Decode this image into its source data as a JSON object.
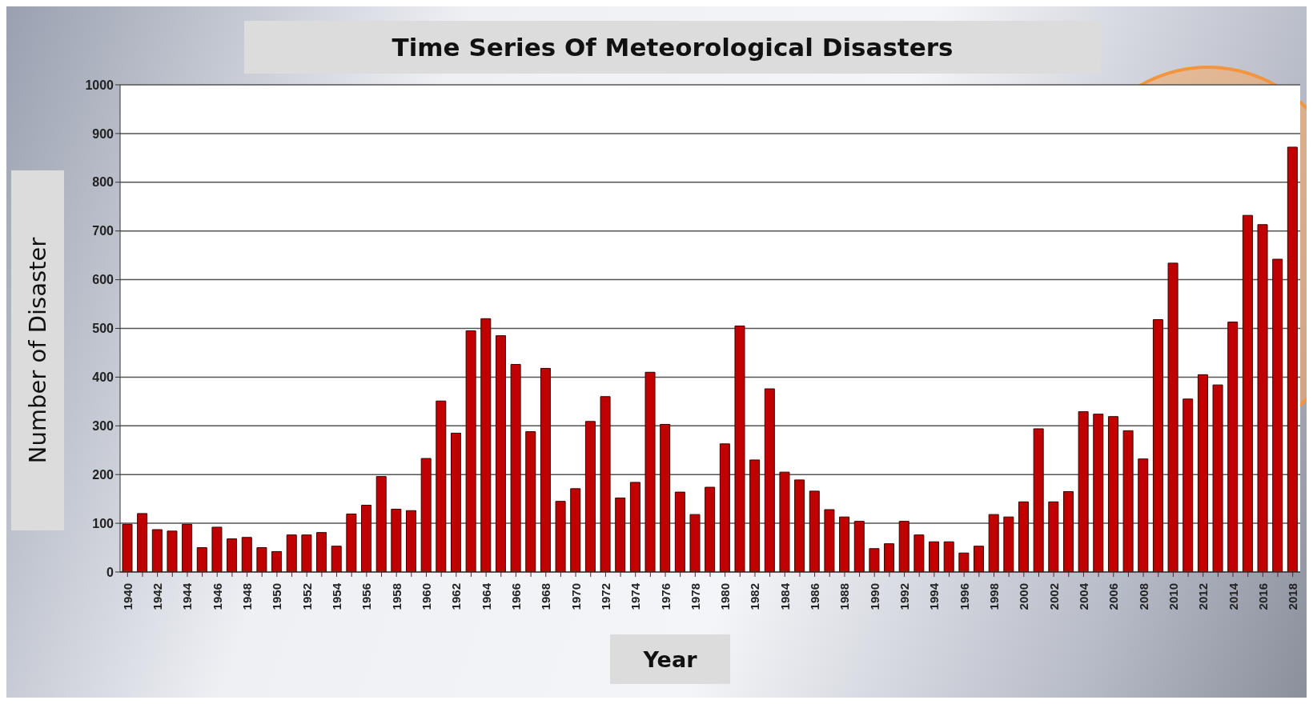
{
  "chart_data": {
    "type": "bar",
    "title": "Time Series Of Meteorological Disasters",
    "xlabel": "Year",
    "ylabel": "Number of Disaster",
    "categories": [
      "1940",
      null,
      "1942",
      null,
      "1944",
      null,
      "1946",
      null,
      "1948",
      null,
      "1950",
      null,
      "1952",
      null,
      "1954",
      null,
      "1956",
      null,
      "1958",
      null,
      "1960",
      null,
      "1962",
      null,
      "1964",
      null,
      "1966",
      null,
      "1968",
      null,
      "1970",
      null,
      "1972",
      null,
      "1974",
      null,
      "1976",
      null,
      "1978",
      null,
      "1980",
      null,
      "1982",
      null,
      "1984",
      null,
      "1986",
      null,
      "1988",
      null,
      "1990",
      null,
      "1992",
      null,
      "1994",
      null,
      "1996",
      null,
      "1998",
      null,
      "2000",
      null,
      "2002",
      null,
      "2004",
      null,
      "2006",
      null,
      "2008",
      null,
      "2010",
      null,
      "2012",
      null,
      "2014",
      null,
      "2016",
      null,
      "2018"
    ],
    "values": [
      98,
      120,
      87,
      84,
      98,
      50,
      92,
      68,
      71,
      50,
      42,
      76,
      76,
      81,
      53,
      119,
      137,
      196,
      129,
      126,
      233,
      351,
      285,
      495,
      520,
      485,
      426,
      288,
      418,
      145,
      171,
      309,
      360,
      152,
      184,
      410,
      303,
      164,
      118,
      174,
      263,
      505,
      230,
      376,
      205,
      189,
      166,
      128,
      113,
      104,
      48,
      58,
      104,
      76,
      62,
      62,
      39,
      53,
      118,
      113,
      144,
      294,
      144,
      165,
      329,
      324,
      319,
      290,
      232,
      518,
      634,
      355,
      405,
      384,
      513,
      732,
      713,
      642,
      872
    ],
    "color": "#c00000",
    "ylim": [
      0,
      1000
    ],
    "yticks": [
      0,
      100,
      200,
      300,
      400,
      500,
      600,
      700,
      800,
      900,
      1000
    ],
    "grid": "y"
  }
}
